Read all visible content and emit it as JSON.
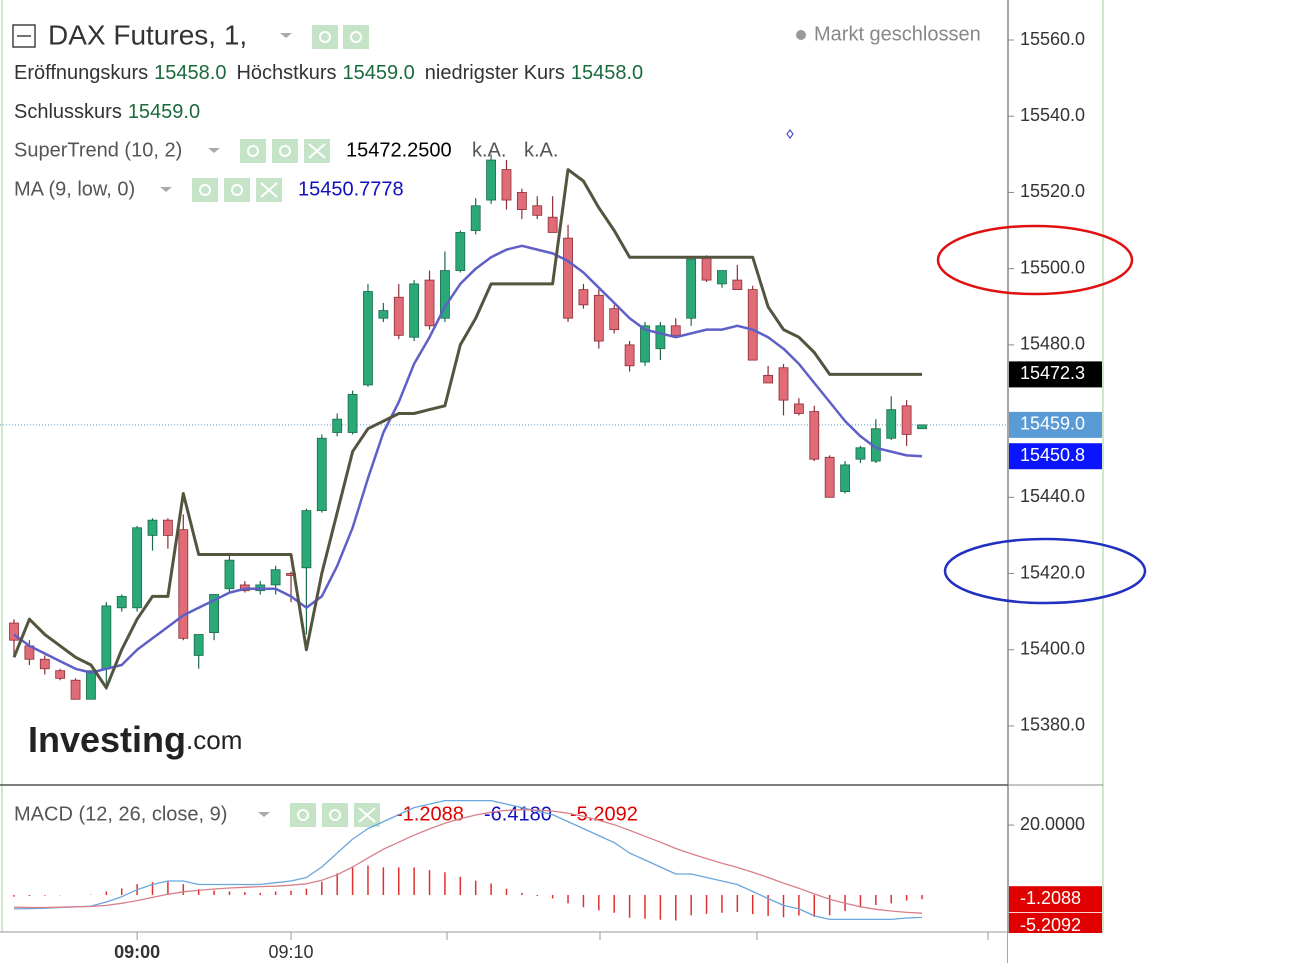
{
  "chart_data": {
    "type": "candlestick",
    "title": "DAX Futures, 1,",
    "status": "Markt geschlossen",
    "ohlc_header": [
      {
        "label": "Eröffnungskurs",
        "value": "15458.0"
      },
      {
        "label": "Höchstkurs",
        "value": "15459.0"
      },
      {
        "label": "niedrigster Kurs",
        "value": "15458.0"
      },
      {
        "label": "Schlusskurs",
        "value": "15459.0"
      }
    ],
    "categories": [
      null,
      null,
      null,
      null,
      null,
      null,
      null,
      null,
      "09:00",
      null,
      null,
      null,
      null,
      null,
      null,
      null,
      null,
      null,
      "09:10",
      null,
      null,
      null,
      null,
      null,
      null,
      null,
      null,
      null,
      null,
      null,
      null,
      null,
      null,
      null,
      null,
      null,
      null,
      null,
      null,
      null,
      null,
      null,
      null,
      null,
      null,
      null,
      null,
      null,
      null,
      null,
      null,
      null,
      null,
      null,
      null,
      null,
      null,
      null,
      null,
      null
    ],
    "open": [
      15407,
      15401,
      15397.5,
      15394.5,
      15392,
      15387,
      15395,
      15411,
      15411,
      15430,
      15434,
      15431.5,
      15398.5,
      15404.5,
      15416,
      15417,
      15415.5,
      15417,
      15420,
      15421.5,
      15436.5,
      15457,
      15457,
      15469.5,
      15487,
      15492.5,
      15482,
      15497,
      15487,
      15499.5,
      15510,
      15518,
      15526,
      15520,
      15516.5,
      15513.5,
      15508,
      15494.5,
      15493,
      15489.5,
      15480,
      15475.5,
      15479,
      15485,
      15487,
      15503,
      15496,
      15497,
      15494.5,
      15472,
      15474,
      15464.5,
      15462.5,
      15450.5,
      15441.5,
      15450,
      15449.5,
      15455.5,
      15464,
      15458
    ],
    "high": [
      15408,
      15402.5,
      15398.5,
      15395,
      15392.5,
      15394.5,
      15412.5,
      15414.5,
      15432.5,
      15434.5,
      15434.5,
      15435.5,
      15404,
      15414.5,
      15425,
      15418,
      15418,
      15422,
      15420.5,
      15437,
      15456.5,
      15462,
      15468,
      15496,
      15491,
      15496,
      15497,
      15499.5,
      15504.5,
      15510,
      15518.5,
      15530,
      15528.5,
      15521,
      15519,
      15519,
      15511.5,
      15496,
      15494.5,
      15490.5,
      15481,
      15486,
      15486,
      15487,
      15503,
      15503.5,
      15499.5,
      15501,
      15495.5,
      15474.5,
      15475,
      15466,
      15464,
      15451,
      15449.5,
      15453.5,
      15460.5,
      15466.5,
      15465.5,
      15459
    ],
    "low": [
      15398.5,
      15396,
      15393.5,
      15392,
      15387,
      15387,
      15389.5,
      15410,
      15410,
      15426,
      15426.5,
      15402.5,
      15395,
      15402.5,
      15415,
      15415,
      15414.5,
      15414.5,
      15412.5,
      15404,
      15436,
      15456,
      15456.5,
      15469,
      15486,
      15481.5,
      15481,
      15484,
      15486,
      15499,
      15509,
      15517,
      15515.5,
      15513,
      15513,
      15509.5,
      15486,
      15489.5,
      15479,
      15483,
      15473,
      15474.5,
      15476,
      15482.5,
      15485,
      15496.5,
      15495,
      15494.5,
      15476,
      15470,
      15461.5,
      15461.5,
      15449.5,
      15440,
      15441,
      15449,
      15449,
      15455,
      15453.5,
      15458
    ],
    "close": [
      15402.5,
      15397.5,
      15395,
      15392.5,
      15387,
      15394.5,
      15411.5,
      15414,
      15432,
      15434,
      15430,
      15403,
      15404,
      15414.5,
      15423.5,
      15415.5,
      15417,
      15421,
      15419.5,
      15436.5,
      15455.5,
      15460.5,
      15467,
      15494,
      15489,
      15482.5,
      15496,
      15485,
      15499.5,
      15509.5,
      15516.5,
      15528.5,
      15518,
      15515.5,
      15514,
      15509.5,
      15487,
      15490.5,
      15481,
      15484,
      15474.5,
      15485,
      15485,
      15482.5,
      15502.5,
      15497,
      15499.5,
      15494.5,
      15476,
      15470,
      15465.5,
      15462,
      15450,
      15440,
      15448.5,
      15453,
      15458,
      15463,
      15456.5,
      15459
    ],
    "up_color": "#2aa876",
    "down_color": "#e06c78",
    "last_price_label": "15459.0",
    "last_price_color": "#5b9bd5",
    "overlays": [
      {
        "name": "SuperTrend (10, 2)",
        "color": "#55553f",
        "value_label": "15472.2500",
        "extra_labels": [
          "k.A.",
          "k.A."
        ],
        "axis_label": "15472.3",
        "axis_label_color": "#000000",
        "values": [
          15398,
          15408,
          15404,
          15401,
          15398,
          15396,
          15390,
          15400,
          15408,
          15414,
          15414,
          15441,
          15425,
          15425,
          15425,
          15425,
          15425,
          15425,
          15425,
          15400,
          15420,
          15436,
          15452,
          15458,
          15460,
          15462,
          15462,
          15463,
          15464,
          15480,
          15487,
          15496,
          15496,
          15496,
          15496,
          15496,
          15526,
          15523,
          15516,
          15510,
          15503,
          15503,
          15503,
          15503,
          15503,
          15503,
          15503,
          15503,
          15503,
          15490,
          15484,
          15482,
          15478,
          15472.25,
          15472.25,
          15472.25,
          15472.25,
          15472.25,
          15472.25,
          15472.25
        ]
      },
      {
        "name": "MA (9, low, 0)",
        "color": "#5f5fc8",
        "value_label": "15450.7778",
        "axis_label": "15450.8",
        "axis_label_color": "#0a14ff",
        "values": [
          15404,
          15401,
          15399,
          15397,
          15395,
          15394,
          15395,
          15396,
          15400,
          15403,
          15406,
          15409,
          15411,
          15413,
          15415,
          15416,
          15416,
          15416,
          15414,
          15411,
          15414,
          15422,
          15432,
          15445,
          15457,
          15465,
          15475,
          15482,
          15490,
          15496,
          15500,
          15503,
          15505,
          15506,
          15505,
          15504,
          15502,
          15499,
          15495,
          15491,
          15487,
          15484,
          15483,
          15482,
          15483,
          15484,
          15484,
          15485,
          15484,
          15482,
          15479,
          15475,
          15470,
          15465,
          15460,
          15456,
          15453,
          15452,
          15451,
          15450.7778
        ]
      }
    ],
    "ylim": [
      15364.5,
      15570.5
    ],
    "yticks": [
      {
        "value": 15560,
        "label": "15560.0"
      },
      {
        "value": 15540,
        "label": "15540.0"
      },
      {
        "value": 15520,
        "label": "15520.0"
      },
      {
        "value": 15500,
        "label": "15500.0"
      },
      {
        "value": 15480,
        "label": "15480.0"
      },
      {
        "value": 15460,
        "label": "15460.0"
      },
      {
        "value": 15440,
        "label": "15440.0"
      },
      {
        "value": 15420,
        "label": "15420.0"
      },
      {
        "value": 15400,
        "label": "15400.0"
      },
      {
        "value": 15380,
        "label": "15380.0"
      }
    ],
    "grid": false,
    "watermark": "Investing",
    "watermark_suffix": ".com",
    "macd": {
      "title": "MACD (12, 26, close, 9)",
      "ylim": [
        -10.6,
        30.9
      ],
      "yticks": [
        {
          "value": 20,
          "label": "20.0000"
        }
      ],
      "histogram": {
        "color": "#e03030",
        "value_label": "-1.2088",
        "axis_label_color": "#e00000",
        "values": [
          -0.5,
          -0.3,
          -0.2,
          -0.1,
          0,
          0.1,
          1,
          1.9,
          3.1,
          3.7,
          3.8,
          3.1,
          1.7,
          1.3,
          1,
          0.8,
          0.6,
          1,
          1.2,
          1.8,
          3.8,
          6.2,
          8,
          8.4,
          7.9,
          7.9,
          7.9,
          7.1,
          6.5,
          5.2,
          4.1,
          3.3,
          1.8,
          0.6,
          -0.3,
          -1,
          -2.4,
          -3.5,
          -4.4,
          -5.1,
          -6.5,
          -6.8,
          -7.1,
          -7.3,
          -5.8,
          -5.4,
          -5.1,
          -4.9,
          -5.5,
          -6,
          -6.4,
          -5.9,
          -6.3,
          -5.8,
          -4.6,
          -3.6,
          -2.9,
          -2.4,
          -1.6,
          -1.2088
        ]
      },
      "macd_line": {
        "color": "#6aa6dd",
        "label_color": "#1010c0",
        "value_label": "-6.4180",
        "values": [
          -4,
          -3.9,
          -3.8,
          -3.6,
          -3.4,
          -3.2,
          -2,
          -0.5,
          1.5,
          3,
          4,
          4,
          3,
          3,
          3,
          3,
          3,
          3.5,
          4,
          5,
          8,
          12,
          16,
          19,
          21,
          23,
          25,
          26,
          27,
          27,
          27,
          27,
          26,
          25,
          24,
          23,
          21,
          19,
          17,
          15,
          12,
          10,
          8,
          6,
          6,
          5,
          4,
          3,
          1,
          -1,
          -3,
          -4,
          -6,
          -7,
          -7,
          -7,
          -7,
          -7,
          -6.6,
          -6.418
        ]
      },
      "signal_line": {
        "color": "#d8808a",
        "label_color": "#e00000",
        "value_label": "-5.2092",
        "axis_label_color": "#e00000",
        "values": [
          -3.5,
          -3.6,
          -3.6,
          -3.5,
          -3.4,
          -3.3,
          -3,
          -2.4,
          -1.6,
          -0.7,
          0.2,
          0.9,
          1.3,
          1.7,
          2,
          2.2,
          2.4,
          2.5,
          2.8,
          3.2,
          4.2,
          5.8,
          8,
          10.6,
          13.1,
          15.1,
          17.1,
          18.9,
          20.5,
          21.8,
          22.9,
          23.7,
          24.2,
          24.4,
          24.3,
          24,
          23.4,
          22.5,
          21.4,
          20.1,
          18.5,
          16.8,
          15.1,
          13.3,
          11.8,
          10.4,
          9.1,
          7.9,
          6.5,
          5,
          3.4,
          1.9,
          0.3,
          -1.2,
          -2.4,
          -3.4,
          -4.1,
          -4.6,
          -5,
          -5.2092
        ]
      }
    }
  }
}
